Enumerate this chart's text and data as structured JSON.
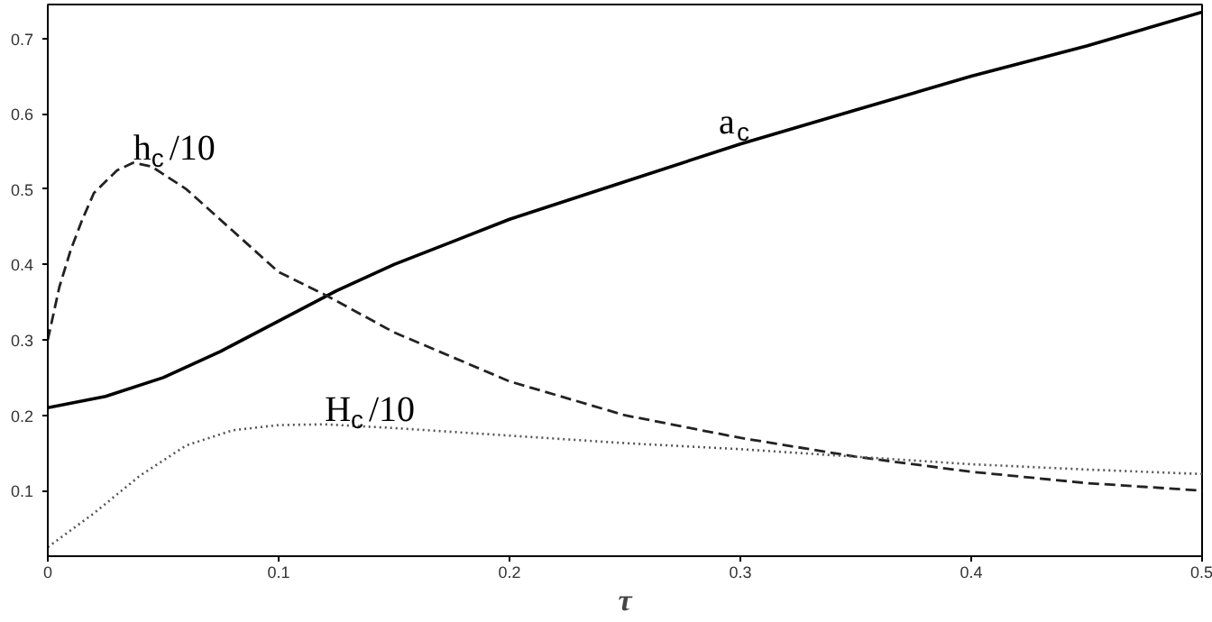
{
  "chart_data": {
    "type": "line",
    "xlabel": "τ",
    "xlim": [
      0,
      0.5
    ],
    "ylim": [
      0.013,
      0.745
    ],
    "xticks": [
      0,
      0.1,
      0.2,
      0.3,
      0.4,
      0.5
    ],
    "yticks": [
      0.1,
      0.2,
      0.3,
      0.4,
      0.5,
      0.6,
      0.7
    ],
    "grid": false,
    "series": [
      {
        "name": "a$_{c}$",
        "color": "#000000",
        "line_style": "solid",
        "x": [
          0,
          0.025,
          0.05,
          0.075,
          0.1,
          0.125,
          0.15,
          0.2,
          0.25,
          0.3,
          0.35,
          0.4,
          0.45,
          0.5
        ],
        "values": [
          0.21,
          0.225,
          0.25,
          0.285,
          0.325,
          0.365,
          0.4,
          0.46,
          0.51,
          0.56,
          0.605,
          0.65,
          0.69,
          0.735
        ]
      },
      {
        "name": "h$_{c}$/10",
        "color": "#222222",
        "line_style": "dashed",
        "x": [
          0,
          0.005,
          0.01,
          0.015,
          0.02,
          0.03,
          0.037,
          0.045,
          0.06,
          0.08,
          0.1,
          0.12,
          0.15,
          0.2,
          0.25,
          0.3,
          0.35,
          0.4,
          0.45,
          0.5
        ],
        "values": [
          0.3,
          0.37,
          0.42,
          0.46,
          0.495,
          0.525,
          0.535,
          0.53,
          0.5,
          0.445,
          0.39,
          0.36,
          0.31,
          0.245,
          0.2,
          0.17,
          0.145,
          0.125,
          0.11,
          0.1
        ]
      },
      {
        "name": "H$_{c}$/10",
        "color": "#555555",
        "line_style": "dotted",
        "x": [
          0,
          0.02,
          0.04,
          0.06,
          0.08,
          0.1,
          0.12,
          0.15,
          0.2,
          0.25,
          0.3,
          0.35,
          0.4,
          0.45,
          0.5
        ],
        "values": [
          0.025,
          0.07,
          0.12,
          0.16,
          0.18,
          0.187,
          0.188,
          0.183,
          0.173,
          0.163,
          0.155,
          0.145,
          0.135,
          0.128,
          0.122
        ]
      }
    ]
  }
}
